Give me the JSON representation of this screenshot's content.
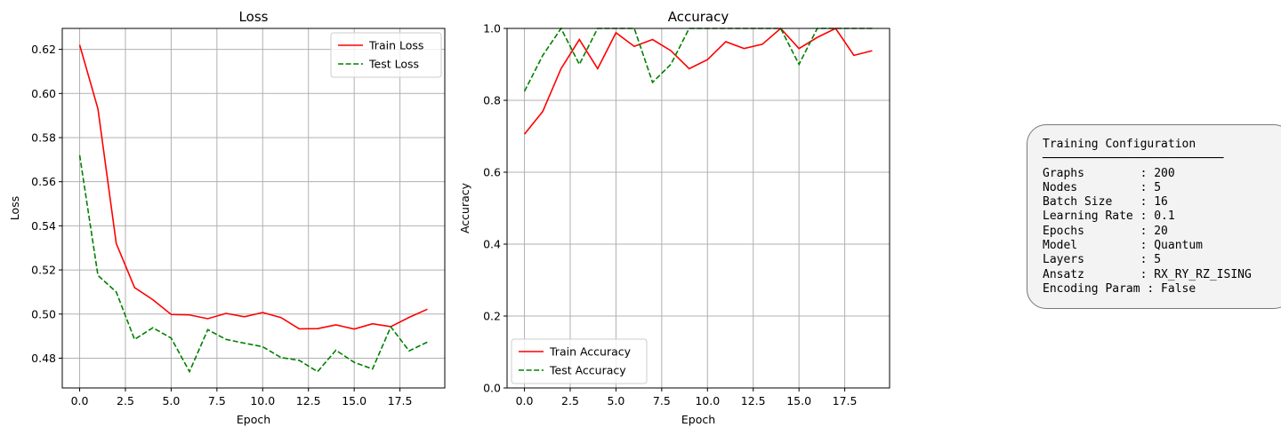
{
  "colors": {
    "train": "#ff0000",
    "test": "#008000",
    "grid": "#b0b0b0",
    "box_bg": "#f3f3f3",
    "box_border": "#777777"
  },
  "chart_data": [
    {
      "type": "line",
      "title": "Loss",
      "xlabel": "Epoch",
      "ylabel": "Loss",
      "x": [
        0,
        1,
        2,
        3,
        4,
        5,
        6,
        7,
        8,
        9,
        10,
        11,
        12,
        13,
        14,
        15,
        16,
        17,
        18,
        19
      ],
      "xlim": [
        -0.95,
        19.95
      ],
      "ylim": [
        0.4665,
        0.6295
      ],
      "xticks": [
        0.0,
        2.5,
        5.0,
        7.5,
        10.0,
        12.5,
        15.0,
        17.5
      ],
      "xtick_labels": [
        "0.0",
        "2.5",
        "5.0",
        "7.5",
        "10.0",
        "12.5",
        "15.0",
        "17.5"
      ],
      "yticks": [
        0.48,
        0.5,
        0.52,
        0.54,
        0.56,
        0.58,
        0.6,
        0.62
      ],
      "ytick_labels": [
        "0.48",
        "0.50",
        "0.52",
        "0.54",
        "0.56",
        "0.58",
        "0.60",
        "0.62"
      ],
      "grid": true,
      "legend_position": "top-right",
      "series": [
        {
          "name": "Train Loss",
          "style": "solid",
          "color": "#ff0000",
          "values": [
            0.622,
            0.593,
            0.532,
            0.512,
            0.5065,
            0.4998,
            0.4996,
            0.4979,
            0.5003,
            0.4988,
            0.5007,
            0.4984,
            0.4933,
            0.4934,
            0.4951,
            0.4932,
            0.4956,
            0.4943,
            0.4985,
            0.5022
          ]
        },
        {
          "name": "Test Loss",
          "style": "dashed",
          "color": "#008000",
          "values": [
            0.572,
            0.5175,
            0.51,
            0.4885,
            0.4938,
            0.4891,
            0.4739,
            0.4929,
            0.4885,
            0.4868,
            0.4852,
            0.4803,
            0.479,
            0.4739,
            0.4836,
            0.4781,
            0.4751,
            0.4942,
            0.4833,
            0.4873
          ]
        }
      ]
    },
    {
      "type": "line",
      "title": "Accuracy",
      "xlabel": "Epoch",
      "ylabel": "Accuracy",
      "x": [
        0,
        1,
        2,
        3,
        4,
        5,
        6,
        7,
        8,
        9,
        10,
        11,
        12,
        13,
        14,
        15,
        16,
        17,
        18,
        19
      ],
      "xlim": [
        -0.95,
        19.95
      ],
      "ylim": [
        0.0,
        1.0
      ],
      "xticks": [
        0.0,
        2.5,
        5.0,
        7.5,
        10.0,
        12.5,
        15.0,
        17.5
      ],
      "xtick_labels": [
        "0.0",
        "2.5",
        "5.0",
        "7.5",
        "10.0",
        "12.5",
        "15.0",
        "17.5"
      ],
      "yticks": [
        0.0,
        0.2,
        0.4,
        0.6,
        0.8,
        1.0
      ],
      "ytick_labels": [
        "0.0",
        "0.2",
        "0.4",
        "0.6",
        "0.8",
        "1.0"
      ],
      "grid": true,
      "legend_position": "bottom-left",
      "series": [
        {
          "name": "Train Accuracy",
          "style": "solid",
          "color": "#ff0000",
          "values": [
            0.706,
            0.769,
            0.888,
            0.969,
            0.888,
            0.988,
            0.95,
            0.969,
            0.938,
            0.888,
            0.913,
            0.963,
            0.944,
            0.956,
            1.0,
            0.944,
            0.975,
            1.0,
            0.925,
            0.938
          ]
        },
        {
          "name": "Test Accuracy",
          "style": "dashed",
          "color": "#008000",
          "values": [
            0.825,
            0.925,
            1.0,
            0.9,
            1.0,
            1.0,
            1.0,
            0.85,
            0.9,
            1.0,
            1.0,
            1.0,
            1.0,
            1.0,
            1.0,
            0.9,
            1.0,
            1.0,
            1.0,
            1.0
          ]
        }
      ]
    }
  ],
  "config": {
    "title": "Training Configuration",
    "rule": "──────────────────────────",
    "rows": [
      "Graphs        : 200",
      "Nodes         : 5",
      "Batch Size    : 16",
      "Learning Rate : 0.1",
      "Epochs        : 20",
      "Model         : Quantum",
      "Layers        : 5",
      "Ansatz        : RX_RY_RZ_ISING",
      "Encoding Param : False"
    ]
  }
}
